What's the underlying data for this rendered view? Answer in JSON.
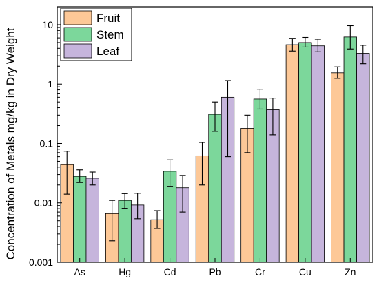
{
  "chart_data": {
    "type": "bar",
    "title": "",
    "xlabel": "",
    "ylabel": "Concentration of Metals mg/kg in Dry Weight",
    "yscale": "log",
    "ylim": [
      0.001,
      20
    ],
    "yticks": [
      {
        "value": 0.001,
        "label": "0.001"
      },
      {
        "value": 0.01,
        "label": "0.01"
      },
      {
        "value": 0.1,
        "label": "0.1"
      },
      {
        "value": 1,
        "label": "1"
      },
      {
        "value": 10,
        "label": "10"
      }
    ],
    "categories": [
      "As",
      "Hg",
      "Cd",
      "Pb",
      "Cr",
      "Cu",
      "Zn"
    ],
    "legend_position": "top-left",
    "grid": false,
    "series": [
      {
        "name": "Fruit",
        "color": "#FDC897",
        "values": [
          0.044,
          0.0066,
          0.0052,
          0.062,
          0.18,
          4.6,
          1.55
        ],
        "err_low": [
          0.014,
          0.0023,
          0.0037,
          0.02,
          0.07,
          3.6,
          1.25
        ],
        "err_high": [
          0.074,
          0.011,
          0.0074,
          0.104,
          0.3,
          5.9,
          1.95
        ]
      },
      {
        "name": "Stem",
        "color": "#7CD79B",
        "values": [
          0.028,
          0.011,
          0.034,
          0.31,
          0.56,
          5.0,
          6.2
        ],
        "err_low": [
          0.022,
          0.0081,
          0.019,
          0.16,
          0.38,
          4.2,
          3.9
        ],
        "err_high": [
          0.036,
          0.0143,
          0.053,
          0.5,
          0.82,
          6.1,
          9.6
        ]
      },
      {
        "name": "Leaf",
        "color": "#C6B5DC",
        "values": [
          0.026,
          0.0092,
          0.018,
          0.6,
          0.37,
          4.4,
          3.3
        ],
        "err_low": [
          0.02,
          0.0054,
          0.007,
          0.06,
          0.14,
          3.5,
          2.2
        ],
        "err_high": [
          0.033,
          0.0145,
          0.029,
          1.15,
          0.58,
          5.7,
          4.5
        ]
      }
    ]
  }
}
